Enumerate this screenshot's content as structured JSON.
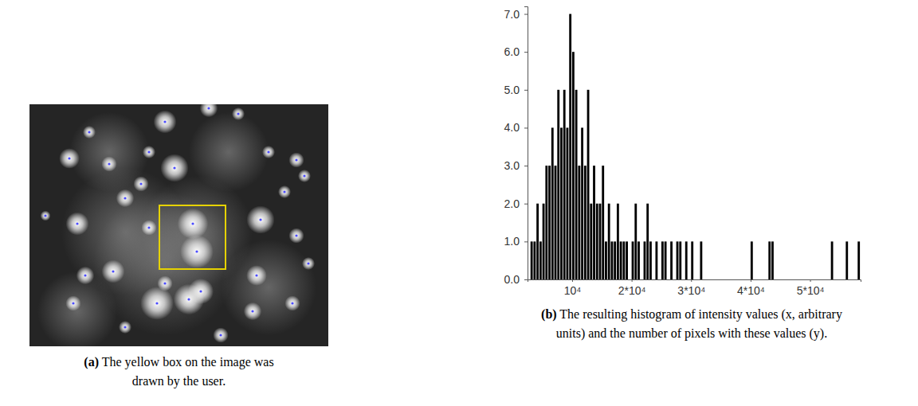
{
  "chart_data": [
    {
      "type": "image",
      "label": "(a)",
      "caption": "The yellow box on the image was drawn by the user."
    },
    {
      "type": "histogram",
      "label": "(b)",
      "caption": "The resulting histogram of intensity values (x, arbitrary units) and the number of pixels with these values (y).",
      "color": "#000000",
      "grid": false,
      "xlim": [
        2500,
        58500
      ],
      "ylim": [
        0,
        7.2
      ],
      "xticks": [
        {
          "value": 10000,
          "label": "10⁴"
        },
        {
          "value": 20000,
          "label": "2*10⁴"
        },
        {
          "value": 30000,
          "label": "3*10⁴"
        },
        {
          "value": 40000,
          "label": "4*10⁴"
        },
        {
          "value": 50000,
          "label": "5*10⁴"
        }
      ],
      "yticks": [
        {
          "value": 0,
          "label": "0.0"
        },
        {
          "value": 1,
          "label": "1.0"
        },
        {
          "value": 2,
          "label": "2.0"
        },
        {
          "value": 3,
          "label": "3.0"
        },
        {
          "value": 4,
          "label": "4.0"
        },
        {
          "value": 5,
          "label": "5.0"
        },
        {
          "value": 6,
          "label": "6.0"
        },
        {
          "value": 7,
          "label": "7.0"
        }
      ],
      "bins": [
        3000,
        3500,
        4000,
        4500,
        5000,
        5500,
        6000,
        6500,
        7000,
        7500,
        8000,
        8500,
        9000,
        9500,
        10000,
        10500,
        11000,
        11500,
        12000,
        12500,
        13000,
        13500,
        14000,
        14500,
        15000,
        15500,
        16000,
        16500,
        17000,
        17500,
        18000,
        18500,
        19000,
        19500,
        20000,
        20500,
        21000,
        21500,
        22000,
        22500,
        23000,
        23500,
        24000,
        24500,
        25000,
        25500,
        26000,
        26500,
        27000,
        27500,
        28000,
        28500,
        29000,
        29500,
        30000,
        30500,
        31000,
        31500,
        32000,
        32500,
        33000,
        33500,
        34000,
        34500,
        35000,
        35500,
        36000,
        36500,
        37000,
        37500,
        38000,
        38500,
        39000,
        39500,
        40000,
        40500,
        41000,
        41500,
        42000,
        42500,
        43000,
        43500,
        44000,
        44500,
        45000,
        45500,
        46000,
        46500,
        47000,
        47500,
        48000,
        48500,
        49000,
        49500,
        50000,
        50500,
        51000,
        51500,
        52000,
        52500,
        53000,
        53500,
        54000,
        54500,
        55000,
        55500,
        56000,
        56500,
        57000,
        57500,
        58000,
        58500
      ],
      "values": [
        1,
        1,
        2,
        1,
        2,
        3,
        3,
        4,
        3,
        5,
        4,
        5,
        4,
        7,
        6,
        5,
        3,
        4,
        3,
        5,
        2,
        3,
        2,
        2,
        3,
        1,
        2,
        1,
        1,
        2,
        1,
        1,
        1,
        0,
        1,
        2,
        1,
        0,
        1,
        2,
        1,
        0,
        1,
        0,
        1,
        1,
        0,
        1,
        0,
        1,
        1,
        0,
        1,
        0,
        1,
        0,
        0,
        1,
        0,
        0,
        0,
        0,
        0,
        0,
        0,
        0,
        0,
        0,
        0,
        0,
        0,
        0,
        0,
        0,
        1,
        0,
        0,
        0,
        0,
        0,
        1,
        1,
        0,
        0,
        0,
        0,
        0,
        0,
        0,
        0,
        0,
        0,
        0,
        0,
        0,
        0,
        0,
        0,
        0,
        0,
        0,
        1,
        0,
        0,
        0,
        0,
        1,
        0,
        0,
        0,
        1
      ]
    }
  ]
}
